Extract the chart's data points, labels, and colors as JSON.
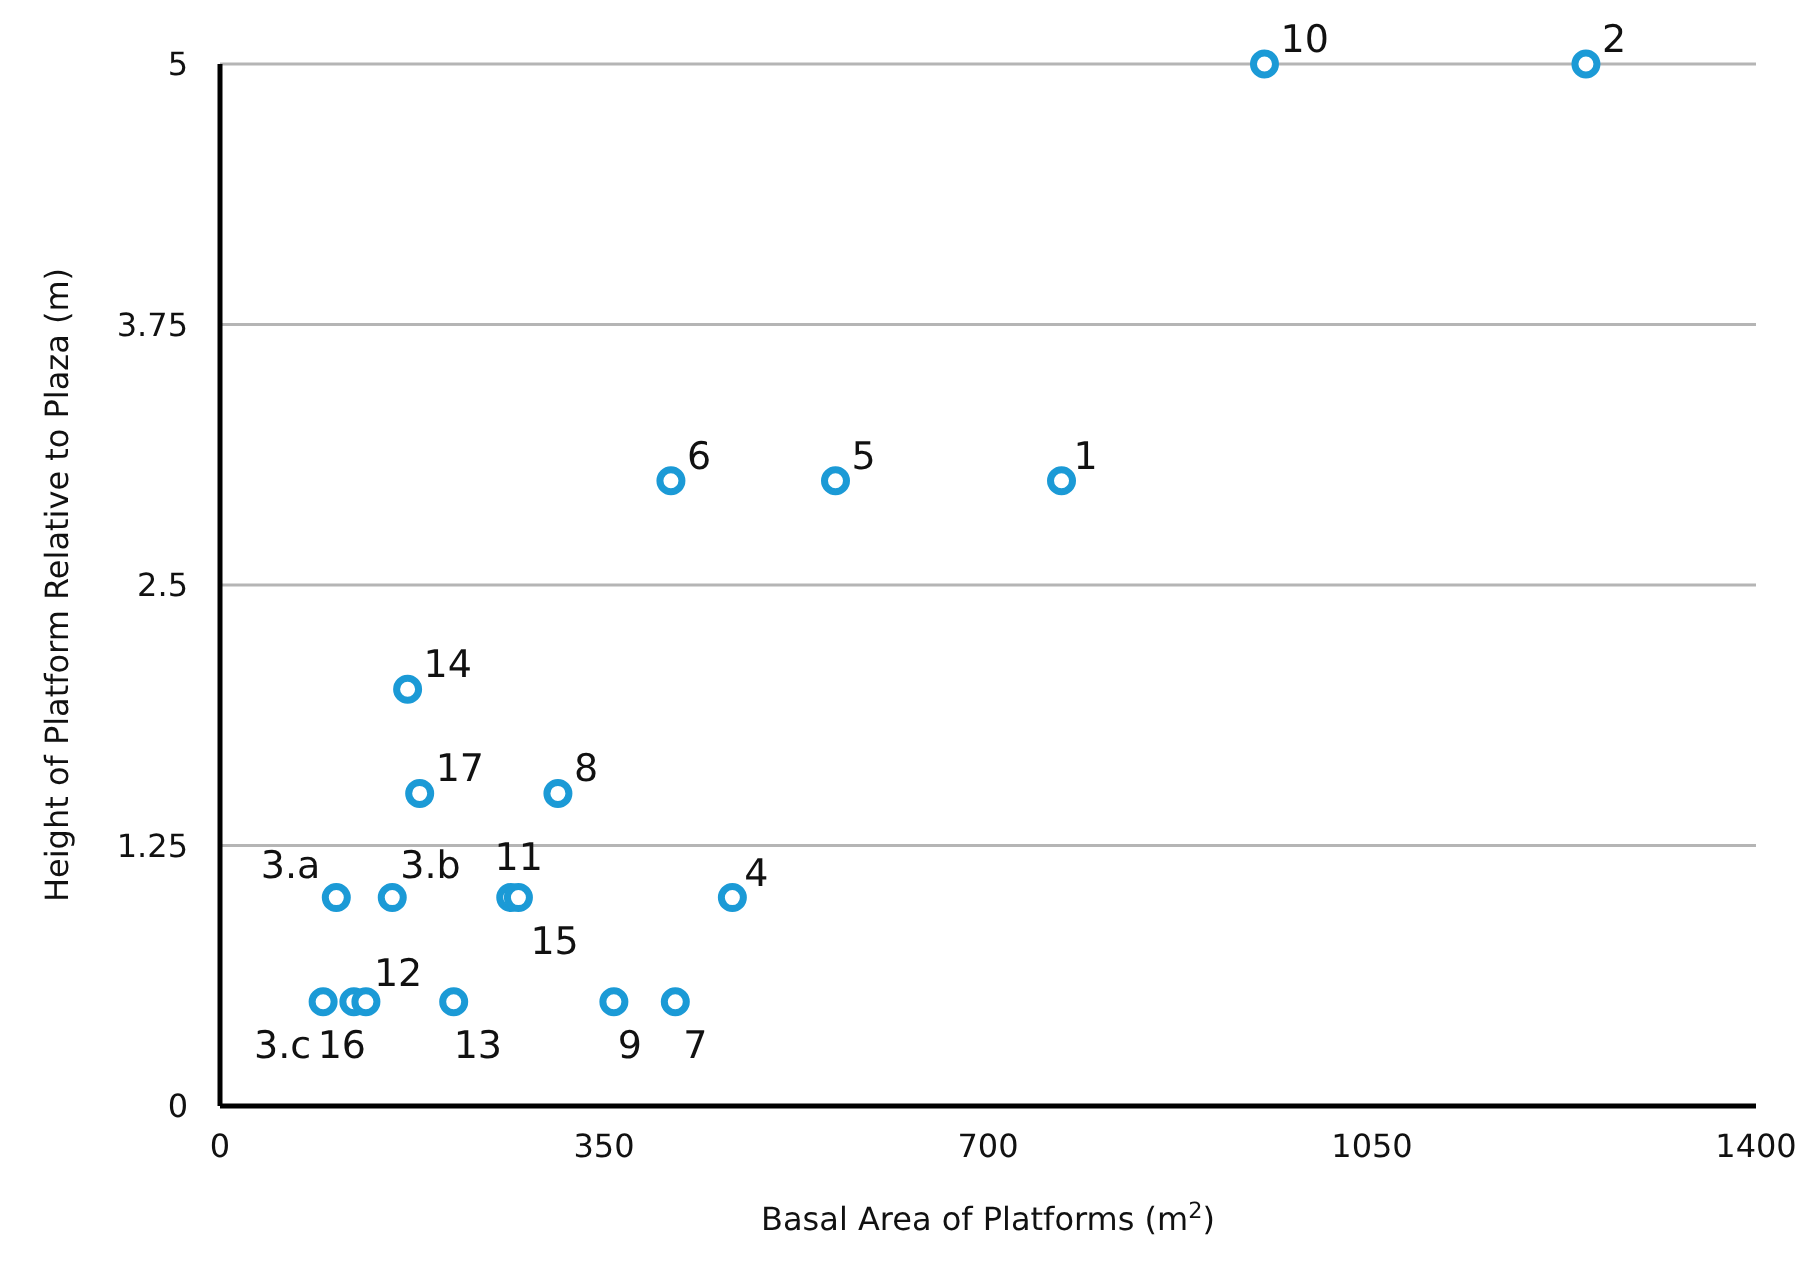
{
  "chart_data": {
    "type": "scatter",
    "xlabel": "Basal Area of Platforms (m$^{2}$)",
    "ylabel": "Height of Platform Relative to Plaza (m)",
    "x": [
      952,
      1245,
      411,
      561,
      767,
      171,
      182,
      308,
      106,
      157,
      265,
      272,
      467,
      94,
      122,
      133,
      213,
      359,
      415
    ],
    "values": [
      5,
      5,
      3,
      3,
      3,
      2,
      1.5,
      1.5,
      1,
      1,
      1,
      1,
      1,
      0.5,
      0.5,
      0.5,
      0.5,
      0.5,
      0.5
    ],
    "color": "#1b9ad6",
    "marker": "circle",
    "xlim": [
      0,
      1400
    ],
    "xticks": [
      0,
      350,
      700,
      1050,
      1400
    ],
    "ylim": [
      0,
      5
    ],
    "yticks": [
      0,
      1.25,
      2.5,
      3.75,
      5
    ],
    "grid": "y",
    "annotations": [
      {
        "text": "10",
        "x": 952,
        "y": 5
      },
      {
        "text": "2",
        "x": 1245,
        "y": 5
      },
      {
        "text": "6",
        "x": 411,
        "y": 3
      },
      {
        "text": "5",
        "x": 561,
        "y": 3
      },
      {
        "text": "1",
        "x": 767,
        "y": 3
      },
      {
        "text": "14",
        "x": 171,
        "y": 2
      },
      {
        "text": "17",
        "x": 182,
        "y": 1.5
      },
      {
        "text": "8",
        "x": 308,
        "y": 1.5
      },
      {
        "text": "3.a",
        "x": 106,
        "y": 1
      },
      {
        "text": "3.b",
        "x": 157,
        "y": 1
      },
      {
        "text": "11",
        "x": 265,
        "y": 1
      },
      {
        "text": "15",
        "x": 272,
        "y": 1
      },
      {
        "text": "4",
        "x": 467,
        "y": 1
      },
      {
        "text": "3.c",
        "x": 94,
        "y": 0.5
      },
      {
        "text": "16",
        "x": 122,
        "y": 0.5
      },
      {
        "text": "12",
        "x": 133,
        "y": 0.5
      },
      {
        "text": "13",
        "x": 213,
        "y": 0.5
      },
      {
        "text": "9",
        "x": 359,
        "y": 0.5
      },
      {
        "text": "7",
        "x": 415,
        "y": 0.5
      }
    ]
  }
}
